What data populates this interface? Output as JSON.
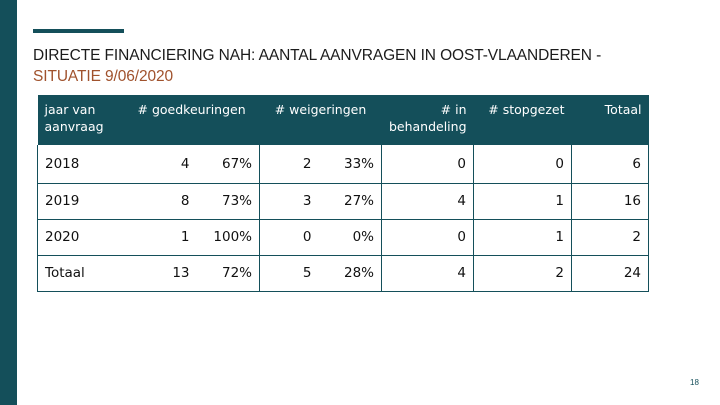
{
  "title": {
    "line1": "DIRECTE FINANCIERING NAH: AANTAL AANVRAGEN IN OOST-VLAANDEREN -",
    "line2": "SITUATIE 9/06/2020"
  },
  "table": {
    "headers": {
      "year": "jaar van aanvraag",
      "approvals": "# goedkeuringen",
      "refusals": "# weigeringen",
      "in_progress": "# in behandeling",
      "stopped": "# stopgezet",
      "total": "Totaal"
    },
    "rows": [
      {
        "year": "2018",
        "approvals": "4",
        "approvals_pct": "67%",
        "refusals": "2",
        "refusals_pct": "33%",
        "in_progress": "0",
        "stopped": "0",
        "total": "6"
      },
      {
        "year": "2019",
        "approvals": "8",
        "approvals_pct": "73%",
        "refusals": "3",
        "refusals_pct": "27%",
        "in_progress": "4",
        "stopped": "1",
        "total": "16"
      },
      {
        "year": "2020",
        "approvals": "1",
        "approvals_pct": "100%",
        "refusals": "0",
        "refusals_pct": "0%",
        "in_progress": "0",
        "stopped": "1",
        "total": "2"
      },
      {
        "year": "Totaal",
        "approvals": "13",
        "approvals_pct": "72%",
        "refusals": "5",
        "refusals_pct": "28%",
        "in_progress": "4",
        "stopped": "2",
        "total": "24"
      }
    ]
  },
  "page_number": "18",
  "colors": {
    "accent": "#144f5a",
    "subtitle": "#a0522d"
  }
}
